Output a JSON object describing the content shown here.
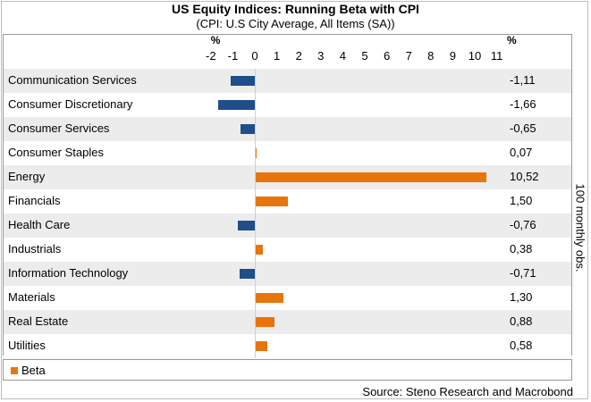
{
  "chart_data": {
    "type": "bar",
    "orientation": "horizontal",
    "title": "US Equity Indices: Running Beta with CPI",
    "subtitle": "(CPI: U.S City Average, All Items (SA))",
    "x_unit_label": "%",
    "value_column_label": "%",
    "side_label": "100 monthly obs.",
    "xlim": [
      -2,
      11
    ],
    "ticks": [
      -2,
      -1,
      0,
      1,
      2,
      3,
      4,
      5,
      6,
      7,
      8,
      9,
      10,
      11
    ],
    "tick_labels": [
      "-2",
      "-1",
      "0",
      "1",
      "2",
      "3",
      "4",
      "5",
      "6",
      "7",
      "8",
      "9",
      "10",
      "11"
    ],
    "categories": [
      "Communication Services",
      "Consumer Discretionary",
      "Consumer Services",
      "Consumer Staples",
      "Energy",
      "Financials",
      "Health Care",
      "Industrials",
      "Information Technology",
      "Materials",
      "Real Estate",
      "Utilities"
    ],
    "series": [
      {
        "name": "Beta",
        "values": [
          -1.11,
          -1.66,
          -0.65,
          0.07,
          10.52,
          1.5,
          -0.76,
          0.38,
          -0.71,
          1.3,
          0.88,
          0.58
        ],
        "value_labels": [
          "-1,11",
          "-1,66",
          "-0,65",
          "0,07",
          "10,52",
          "1,50",
          "-0,76",
          "0,38",
          "-0,71",
          "1,30",
          "0,88",
          "0,58"
        ]
      }
    ],
    "colors": {
      "positive": "#e8740c",
      "negative": "#1f4e8a",
      "band_light": "#ffffff",
      "band_dark": "#ececec",
      "legend": "#e8740c"
    },
    "source": "Source: Steno Research and Macrobond",
    "legend_position": "bottom-left",
    "grid": false
  }
}
